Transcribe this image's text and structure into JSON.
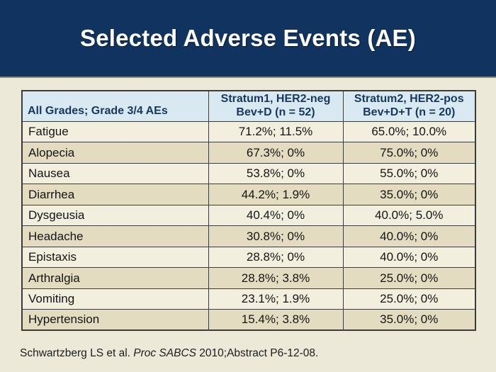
{
  "slide": {
    "title": "Selected Adverse Events (AE)",
    "colors": {
      "titlebar_bg": "#10345F",
      "title_text": "#FFFFFF",
      "body_bg": "#EDE9D8",
      "separator_line": "#8A8D84",
      "table_border": "#3C3C3C",
      "header_row_bg": "#D8E9F2",
      "header_row_text": "#17375E",
      "row_bg": "#F3EFDE",
      "row_alt_bg": "#E3DCC0"
    }
  },
  "table": {
    "headers": [
      {
        "lines": [
          "All Grades; Grade 3/4 AEs"
        ]
      },
      {
        "lines": [
          "Stratum1, HER2-neg",
          "Bev+D (n = 52)"
        ]
      },
      {
        "lines": [
          "Stratum2, HER2-pos",
          "Bev+D+T (n = 20)"
        ]
      }
    ],
    "rows": [
      [
        "Fatigue",
        "71.2%; 11.5%",
        "65.0%; 10.0%"
      ],
      [
        "Alopecia",
        "67.3%; 0%",
        "75.0%; 0%"
      ],
      [
        "Nausea",
        "53.8%; 0%",
        "55.0%; 0%"
      ],
      [
        "Diarrhea",
        "44.2%; 1.9%",
        "35.0%; 0%"
      ],
      [
        "Dysgeusia",
        "40.4%; 0%",
        "40.0%; 5.0%"
      ],
      [
        "Headache",
        "30.8%; 0%",
        "40.0%; 0%"
      ],
      [
        "Epistaxis",
        "28.8%; 0%",
        "40.0%; 0%"
      ],
      [
        "Arthralgia",
        "28.8%; 3.8%",
        "25.0%; 0%"
      ],
      [
        "Vomiting",
        "23.1%; 1.9%",
        "25.0%; 0%"
      ],
      [
        "Hypertension",
        "15.4%; 3.8%",
        "35.0%; 0%"
      ]
    ]
  },
  "footer": {
    "citation_prefix": "Schwartzberg LS et al. ",
    "citation_italic": "Proc SABCS",
    "citation_suffix": " 2010;Abstract P6-12-08."
  }
}
